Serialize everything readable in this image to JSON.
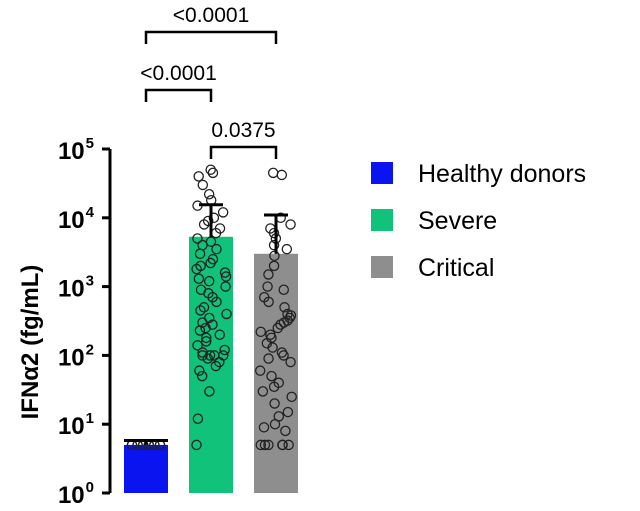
{
  "chart_data": {
    "type": "bar",
    "ylabel": "IFNα2 (fg/mL)",
    "yscale": "log",
    "ylim": [
      1,
      100000
    ],
    "yticks": [
      {
        "base": "10",
        "exp": "0",
        "value": 1
      },
      {
        "base": "10",
        "exp": "1",
        "value": 10
      },
      {
        "base": "10",
        "exp": "2",
        "value": 100
      },
      {
        "base": "10",
        "exp": "3",
        "value": 1000
      },
      {
        "base": "10",
        "exp": "4",
        "value": 10000
      },
      {
        "base": "10",
        "exp": "5",
        "value": 100000
      }
    ],
    "legend_position": "right",
    "series": [
      {
        "name": "Healthy donors",
        "color": "#0a14f0",
        "value": 5,
        "error_upper": 5.8,
        "points": [
          5,
          5,
          5,
          5,
          5,
          5,
          5,
          5,
          5,
          5,
          5,
          5
        ]
      },
      {
        "name": "Severe",
        "color": "#10c27a",
        "value": 5300,
        "error_upper": 15500,
        "points": [
          50000,
          45000,
          40000,
          30000,
          22000,
          18000,
          15000,
          12000,
          10000,
          9000,
          8000,
          7000,
          6000,
          5000,
          4500,
          4000,
          3500,
          3000,
          2500,
          2200,
          2000,
          1800,
          1600,
          1400,
          1300,
          1200,
          1000,
          900,
          800,
          700,
          600,
          500,
          450,
          400,
          350,
          300,
          280,
          250,
          230,
          200,
          180,
          160,
          140,
          120,
          110,
          100,
          100,
          100,
          100,
          90,
          80,
          70,
          60,
          50,
          30,
          12,
          5
        ]
      },
      {
        "name": "Critical",
        "color": "#8e8e8e",
        "value": 3000,
        "error_upper": 11000,
        "points": [
          45000,
          42000,
          10000,
          8000,
          7000,
          6000,
          5000,
          4000,
          3500,
          2800,
          2000,
          1500,
          1000,
          900,
          700,
          600,
          500,
          400,
          380,
          350,
          320,
          300,
          280,
          250,
          220,
          200,
          180,
          150,
          130,
          110,
          100,
          90,
          80,
          60,
          50,
          40,
          35,
          30,
          25,
          20,
          15,
          13,
          10,
          9,
          8,
          5,
          5,
          5,
          5,
          5,
          5
        ]
      }
    ],
    "significance": [
      {
        "from": 0,
        "to": 2,
        "label": "<0.0001"
      },
      {
        "from": 0,
        "to": 1,
        "label": "<0.0001"
      },
      {
        "from": 1,
        "to": 2,
        "label": "0.0375"
      }
    ]
  }
}
